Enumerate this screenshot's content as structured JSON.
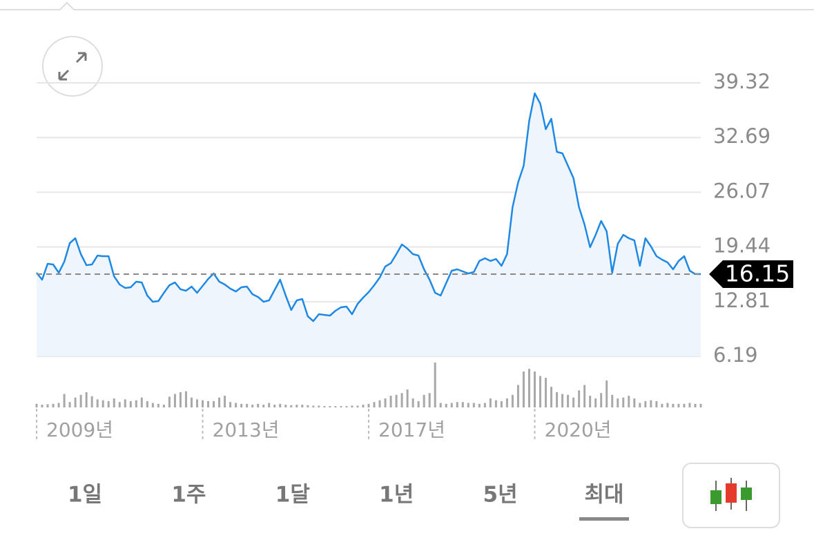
{
  "chart_data": [
    {
      "type": "line",
      "color": "#1e88e5",
      "fill": "#eef5fd",
      "grid": true,
      "categories": [
        "2009년",
        null,
        null,
        null,
        null,
        null,
        null,
        null,
        null,
        null,
        null,
        null,
        null,
        null,
        null,
        null,
        null,
        null,
        null,
        null,
        null,
        null,
        null,
        null,
        null,
        null,
        null,
        null,
        null,
        null,
        "2013년",
        null,
        null,
        null,
        null,
        null,
        null,
        null,
        null,
        null,
        null,
        null,
        null,
        null,
        null,
        null,
        null,
        null,
        null,
        null,
        null,
        null,
        null,
        null,
        null,
        null,
        null,
        null,
        null,
        null,
        "2017년",
        null,
        null,
        null,
        null,
        null,
        null,
        null,
        null,
        null,
        null,
        null,
        null,
        null,
        null,
        null,
        null,
        null,
        null,
        null,
        null,
        null,
        null,
        null,
        null,
        null,
        null,
        null,
        null,
        null,
        "2020년",
        null,
        null,
        null,
        null,
        null,
        null,
        null,
        null,
        null,
        null,
        null,
        null,
        null,
        null,
        null,
        null,
        null,
        null,
        null,
        null,
        null,
        null,
        null,
        null,
        null,
        null,
        null,
        null,
        null,
        null
      ],
      "values": [
        16.31,
        15.48,
        17.4,
        17.32,
        16.31,
        17.65,
        19.91,
        20.5,
        18.57,
        17.23,
        17.32,
        18.4,
        18.32,
        18.32,
        15.89,
        14.89,
        14.47,
        14.56,
        15.23,
        15.14,
        13.55,
        12.8,
        12.88,
        13.89,
        14.81,
        15.14,
        14.31,
        14.14,
        14.64,
        13.89,
        14.72,
        15.56,
        16.23,
        15.23,
        14.89,
        14.39,
        14.05,
        14.56,
        14.64,
        13.72,
        13.38,
        12.8,
        12.97,
        14.22,
        15.48,
        13.55,
        11.8,
        12.97,
        13.13,
        11.04,
        10.46,
        11.29,
        11.21,
        11.13,
        11.71,
        12.13,
        12.21,
        11.29,
        12.55,
        13.3,
        13.97,
        14.81,
        15.73,
        17.07,
        17.48,
        18.57,
        19.74,
        19.24,
        18.57,
        18.4,
        16.73,
        15.48,
        13.89,
        13.55,
        15.06,
        16.56,
        16.73,
        16.48,
        16.23,
        16.4,
        17.74,
        18.07,
        17.74,
        17.99,
        17.15,
        18.57,
        24.26,
        27.27,
        29.28,
        34.72,
        38.06,
        36.81,
        33.71,
        34.97,
        30.95,
        30.79,
        29.28,
        27.78,
        24.26,
        22.17,
        19.41,
        20.91,
        22.59,
        21.33,
        16.31,
        19.83,
        20.91,
        20.5,
        20.24,
        17.15,
        20.5,
        19.49,
        18.32,
        17.9,
        17.57,
        16.73,
        17.74,
        18.32,
        16.56,
        16.15,
        16.15
      ],
      "last_value": 16.15,
      "ylim": [
        6.19,
        39.32
      ],
      "yticks": [
        6.19,
        12.81,
        19.44,
        26.07,
        32.69,
        39.32
      ]
    },
    {
      "type": "bar",
      "color": "#a8a8a8",
      "values": [
        8,
        6,
        7,
        8,
        10,
        30,
        12,
        22,
        28,
        34,
        25,
        18,
        16,
        14,
        20,
        12,
        18,
        14,
        16,
        22,
        14,
        10,
        8,
        6,
        24,
        30,
        34,
        36,
        22,
        18,
        16,
        14,
        14,
        22,
        26,
        12,
        10,
        8,
        8,
        6,
        8,
        6,
        10,
        6,
        8,
        6,
        5,
        6,
        6,
        5,
        4,
        4,
        3,
        3,
        3,
        3,
        3,
        4,
        4,
        6,
        8,
        12,
        16,
        20,
        26,
        28,
        32,
        40,
        20,
        14,
        28,
        32,
        100,
        10,
        8,
        10,
        12,
        12,
        10,
        10,
        8,
        10,
        20,
        16,
        14,
        20,
        28,
        50,
        80,
        86,
        80,
        70,
        66,
        46,
        34,
        30,
        28,
        22,
        38,
        50,
        26,
        20,
        32,
        60,
        28,
        20,
        22,
        26,
        20,
        10,
        14,
        16,
        14,
        8,
        10,
        8,
        8,
        8,
        10,
        8,
        8
      ],
      "ylim": [
        0,
        100
      ]
    }
  ],
  "tabs": [
    "1일",
    "1주",
    "1달",
    "1년",
    "5년",
    "최대"
  ],
  "selected_tab": 5
}
